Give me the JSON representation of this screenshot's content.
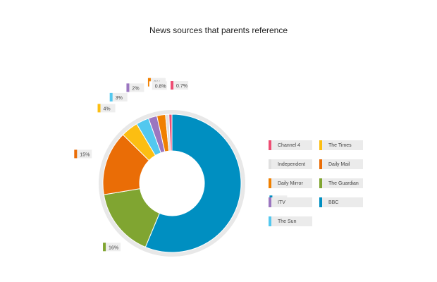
{
  "chart_data": {
    "type": "pie",
    "title": "News sources that parents reference",
    "slices": [
      {
        "name": "BBC",
        "value": 56,
        "label": "56%",
        "color": "#008fc1"
      },
      {
        "name": "The Guardian",
        "value": 16,
        "label": "16%",
        "color": "#80a531"
      },
      {
        "name": "Daily Mail",
        "value": 15,
        "label": "15%",
        "color": "#ea6d06"
      },
      {
        "name": "The Times",
        "value": 4,
        "label": "4%",
        "color": "#fcbe12"
      },
      {
        "name": "The Sun",
        "value": 3,
        "label": "3%",
        "color": "#53c8ef"
      },
      {
        "name": "ITV",
        "value": 2,
        "label": "2%",
        "color": "#9b76c0"
      },
      {
        "name": "Daily Mirror",
        "value": 2,
        "label": "2%",
        "color": "#f08000"
      },
      {
        "name": "Independent",
        "value": 0.8,
        "label": "0.8%",
        "color": "#e0e0e0"
      },
      {
        "name": "Channel 4",
        "value": 0.7,
        "label": "0.7%",
        "color": "#ee4d73"
      }
    ],
    "legend": [
      {
        "name": "Channel 4",
        "color": "#ee4d73"
      },
      {
        "name": "The Times",
        "color": "#fcbe12"
      },
      {
        "name": "Independent",
        "color": "#e0e0e0"
      },
      {
        "name": "Daily Mail",
        "color": "#ea6d06"
      },
      {
        "name": "Daily Mirror",
        "color": "#f08000"
      },
      {
        "name": "The Guardian",
        "color": "#80a531"
      },
      {
        "name": "ITV",
        "color": "#9b76c0"
      },
      {
        "name": "BBC",
        "color": "#008fc1"
      },
      {
        "name": "The Sun",
        "color": "#53c8ef"
      }
    ],
    "legend_placement": "right"
  }
}
